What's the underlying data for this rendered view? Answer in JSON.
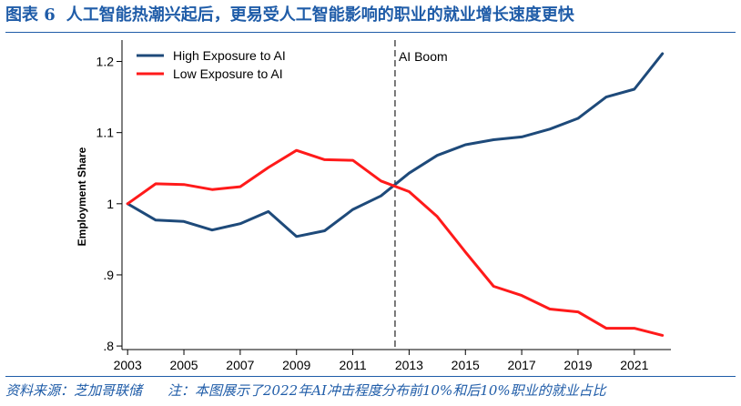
{
  "header": {
    "figure_label": "图表 6",
    "title": "人工智能热潮兴起后，更易受人工智能影响的职业的就业增长速度更快"
  },
  "footer": {
    "source": "资料来源：芝加哥联储",
    "note": "注：本图展示了2022年AI冲击程度分布前10%和后10%职业的就业占比"
  },
  "colors": {
    "accent": "#1f5ca8",
    "high_series": "#1e4a7a",
    "low_series": "#ff1a1a"
  },
  "chart_data": {
    "type": "line",
    "title": "",
    "xlabel": "",
    "ylabel": "Employment Share",
    "xlim": [
      2002.8,
      2022.3
    ],
    "ylim": [
      0.795,
      1.225
    ],
    "x_ticks": [
      2003,
      2005,
      2007,
      2009,
      2011,
      2013,
      2015,
      2017,
      2019,
      2021
    ],
    "x_tick_labels": [
      "2003",
      "2005",
      "2007",
      "2009",
      "2011",
      "2013",
      "2015",
      "2017",
      "2019",
      "2021"
    ],
    "y_ticks": [
      0.8,
      0.9,
      1.0,
      1.1,
      1.2
    ],
    "y_tick_labels": [
      ".8",
      ".9",
      "1",
      "1.1",
      "1.2"
    ],
    "grid": false,
    "legend_position": "top-left",
    "annotation": {
      "x": 2012.5,
      "label": "AI Boom",
      "style": "dashed vertical line"
    },
    "series": [
      {
        "name": "High Exposure to AI",
        "color": "#1e4a7a",
        "x": [
          2003,
          2004,
          2005,
          2006,
          2007,
          2008,
          2009,
          2010,
          2011,
          2012,
          2013,
          2014,
          2015,
          2016,
          2017,
          2018,
          2019,
          2020,
          2021,
          2022
        ],
        "values": [
          1.0,
          0.977,
          0.975,
          0.963,
          0.972,
          0.989,
          0.954,
          0.962,
          0.992,
          1.011,
          1.043,
          1.068,
          1.083,
          1.09,
          1.094,
          1.105,
          1.12,
          1.15,
          1.161,
          1.211
        ]
      },
      {
        "name": "Low Exposure to AI",
        "color": "#ff1a1a",
        "x": [
          2003,
          2004,
          2005,
          2006,
          2007,
          2008,
          2009,
          2010,
          2011,
          2012,
          2013,
          2014,
          2015,
          2016,
          2017,
          2018,
          2019,
          2020,
          2021,
          2022
        ],
        "values": [
          1.0,
          1.028,
          1.027,
          1.02,
          1.024,
          1.051,
          1.075,
          1.062,
          1.061,
          1.032,
          1.017,
          0.982,
          0.932,
          0.884,
          0.871,
          0.852,
          0.848,
          0.825,
          0.825,
          0.815
        ]
      }
    ]
  }
}
